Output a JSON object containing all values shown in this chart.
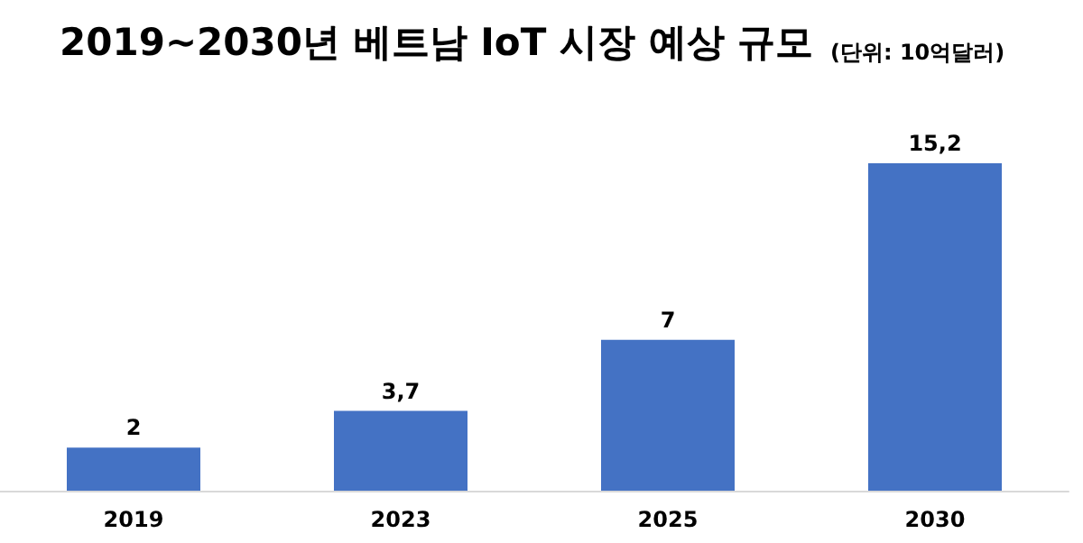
{
  "chart_data": {
    "type": "bar",
    "title": "2019~2030년 베트남 IoT 시장 예상 규모",
    "subtitle": "(단위: 10억달러)",
    "categories": [
      "2019",
      "2023",
      "2025",
      "2030"
    ],
    "values": [
      2,
      3.7,
      7,
      15.2
    ],
    "value_labels": [
      "2",
      "3,7",
      "7",
      "15,2"
    ],
    "color": "#4472c4"
  }
}
